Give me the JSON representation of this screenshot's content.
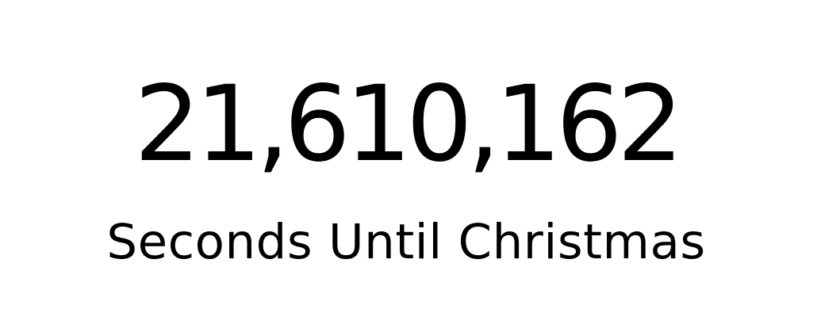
{
  "countdown": {
    "value": "21,610,162",
    "label": "Seconds Until Christmas"
  },
  "colors": {
    "background": "#ffffff",
    "text": "#000000"
  }
}
